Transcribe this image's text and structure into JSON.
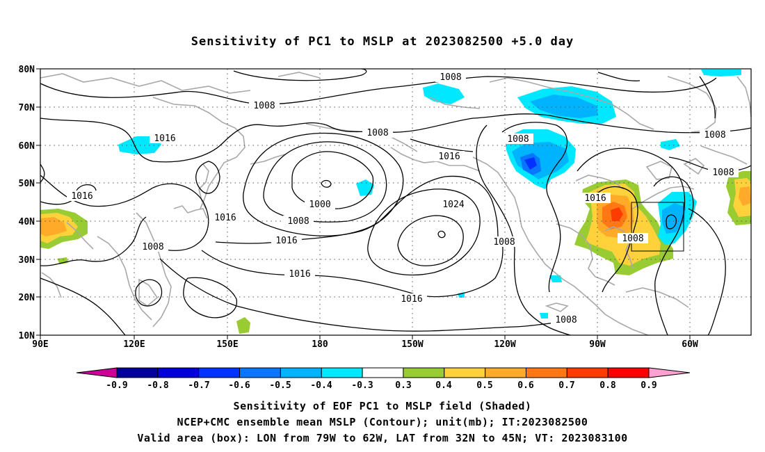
{
  "title": "Sensitivity of PC1 to MSLP at 2023082500 +5.0 day",
  "lat_labels": [
    "80N",
    "70N",
    "60N",
    "50N",
    "40N",
    "30N",
    "20N",
    "10N"
  ],
  "lon_labels": [
    "90E",
    "120E",
    "150E",
    "180",
    "150W",
    "120W",
    "90W",
    "60W"
  ],
  "contour_labels": [
    "1008",
    "1008",
    "1008",
    "1008",
    "1008",
    "1008",
    "1008",
    "1008",
    "1008",
    "1016",
    "1016",
    "1016",
    "1016",
    "1016",
    "1016",
    "1016",
    "1016",
    "1000",
    "1024"
  ],
  "colorbar": {
    "labels": [
      "-0.9",
      "-0.8",
      "-0.7",
      "-0.6",
      "-0.5",
      "-0.4",
      "-0.3",
      "0.3",
      "0.4",
      "0.5",
      "0.6",
      "0.7",
      "0.8",
      "0.9"
    ],
    "colors": [
      "#00009b",
      "#0000d9",
      "#0033ff",
      "#0a75ff",
      "#00b3ff",
      "#00e8ff",
      "#ffffff",
      "#99cc33",
      "#ffd23c",
      "#ffaa28",
      "#ff7814",
      "#ff3c00",
      "#ff0000"
    ],
    "low_end_color": "#cc0099",
    "high_end_color": "#ffa0d2"
  },
  "valid_box": {
    "lon_from": -79,
    "lon_to": -62,
    "lat_from": 32,
    "lat_to": 45
  },
  "captions": {
    "line1": "Sensitivity of EOF PC1 to MSLP field (Shaded)",
    "line2": "NCEP+CMC ensemble mean MSLP (Contour); unit(mb); IT:2023082500",
    "line3": "Valid area (box): LON from 79W to 62W, LAT from 32N to 45N; VT: 2023083100"
  }
}
